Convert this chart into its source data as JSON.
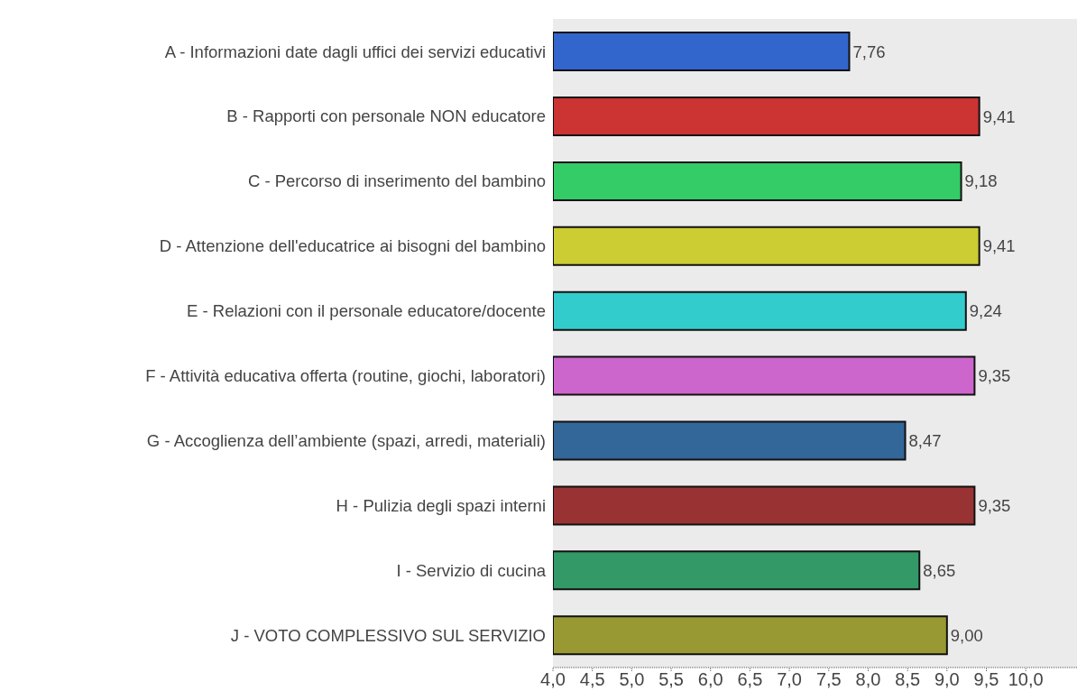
{
  "chart_data": {
    "type": "bar",
    "orientation": "horizontal",
    "categories": [
      "A - Informazioni date dagli uffici dei servizi educativi",
      "B - Rapporti con personale NON educatore",
      "C - Percorso di inserimento del bambino",
      "D - Attenzione dell'educatrice ai bisogni del bambino",
      "E - Relazioni con il personale educatore/docente",
      "F - Attività educativa offerta (routine, giochi, laboratori)",
      "G - Accoglienza dell’ambiente (spazi, arredi, materiali)",
      "H - Pulizia degli spazi interni",
      "I - Servizio di cucina",
      "J - VOTO COMPLESSIVO SUL SERVIZIO"
    ],
    "values": [
      7.76,
      9.41,
      9.18,
      9.41,
      9.24,
      9.35,
      8.47,
      9.35,
      8.65,
      9.0
    ],
    "value_labels": [
      "7,76",
      "9,41",
      "9,18",
      "9,41",
      "9,24",
      "9,35",
      "8,47",
      "9,35",
      "8,65",
      "9,00"
    ],
    "colors": [
      "#3366cc",
      "#cc3333",
      "#33cc66",
      "#cccc33",
      "#33cccc",
      "#cc66cc",
      "#336699",
      "#993333",
      "#339966",
      "#999933"
    ],
    "xlim": [
      4,
      10.65
    ],
    "xticks": [
      {
        "value": 4,
        "label": "4,0"
      },
      {
        "value": 4.5,
        "label": "4,5"
      },
      {
        "value": 5,
        "label": "5,0"
      },
      {
        "value": 5.5,
        "label": "5,5"
      },
      {
        "value": 6,
        "label": "6,0"
      },
      {
        "value": 6.5,
        "label": "6,5"
      },
      {
        "value": 7,
        "label": "7,0"
      },
      {
        "value": 7.5,
        "label": "7,5"
      },
      {
        "value": 8,
        "label": "8,0"
      },
      {
        "value": 8.5,
        "label": "8,5"
      },
      {
        "value": 9,
        "label": "9,0"
      },
      {
        "value": 9.5,
        "label": "9,5"
      },
      {
        "value": 10,
        "label": "10,0"
      }
    ]
  }
}
